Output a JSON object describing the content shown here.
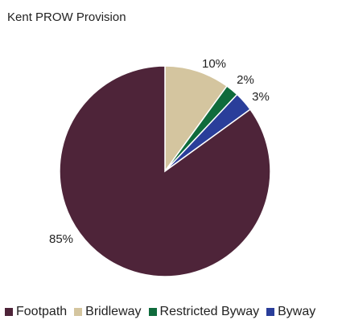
{
  "chart_data": {
    "type": "pie",
    "title": "Kent PROW Provision",
    "categories": [
      "Footpath",
      "Bridleway",
      "Restricted Byway",
      "Byway"
    ],
    "values": [
      85,
      10,
      2,
      3
    ],
    "labels": [
      "85%",
      "10%",
      "2%",
      "3%"
    ],
    "colors": [
      "#4e2439",
      "#d4c59f",
      "#0f6b3c",
      "#2a3e9a"
    ],
    "legend_placement": "bottom"
  }
}
